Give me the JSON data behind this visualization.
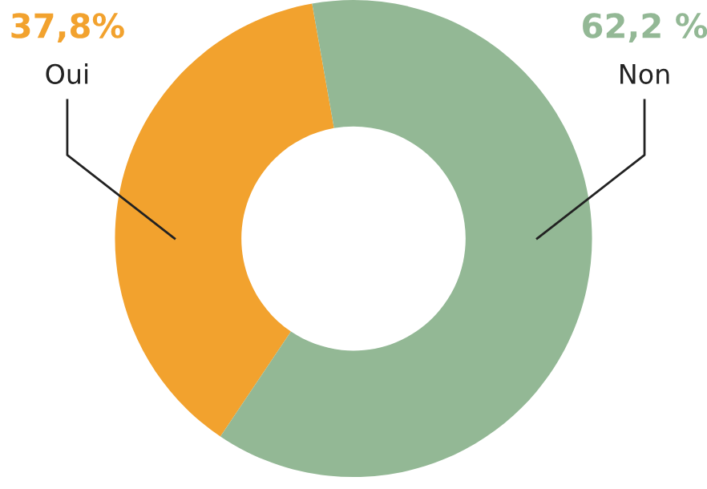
{
  "chart_data": {
    "type": "donut",
    "categories": [
      "Oui",
      "Non"
    ],
    "values": [
      37.8,
      62.2
    ],
    "colors": [
      "#f2a22e",
      "#93b895"
    ],
    "value_labels": [
      "37,8%",
      "62,2 %"
    ],
    "legend": false
  }
}
